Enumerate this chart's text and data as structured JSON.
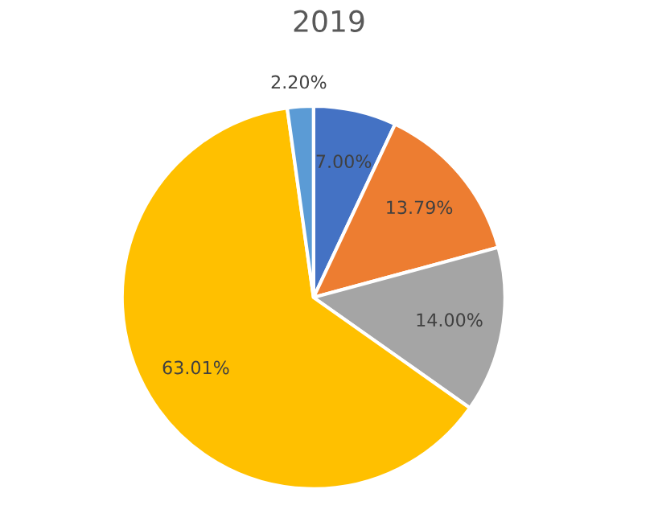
{
  "chart_data": {
    "type": "pie",
    "title": "2019",
    "categories": [
      null,
      null,
      null,
      null,
      null
    ],
    "values": [
      7.0,
      13.79,
      14.0,
      63.01,
      2.2
    ],
    "colors": [
      "#4472c4",
      "#ed7d31",
      "#a5a5a5",
      "#ffc000",
      "#5b9bd5"
    ],
    "value_labels": [
      "7.00%",
      "13.79%",
      "14.00%",
      "63.01%",
      "2.20%"
    ]
  }
}
